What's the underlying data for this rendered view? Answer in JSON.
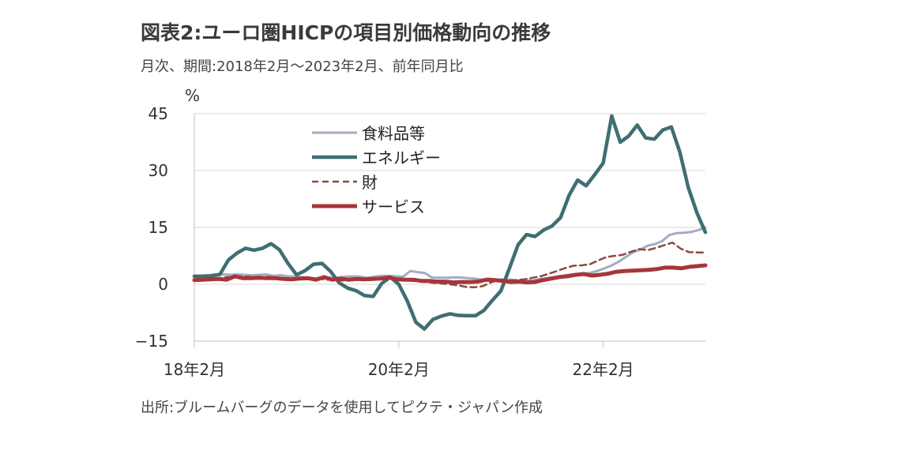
{
  "chart_data": {
    "type": "line",
    "title": "図表2:ユーロ圏HICPの項目別価格動向の推移",
    "subtitle": "月次、期間:2018年2月〜2023年2月、前年同月比",
    "source": "出所:ブルームバーグのデータを使用してピクテ・ジャパン作成",
    "ylabel": "%",
    "ylim": [
      -15,
      45
    ],
    "yticks": [
      "45",
      "30",
      "15",
      "0",
      "−15"
    ],
    "ytick_values": [
      45,
      30,
      15,
      0,
      -15
    ],
    "x_start": "2018-02",
    "x_end": "2023-02",
    "xtick_labels": [
      "18年2月",
      "20年2月",
      "22年2月"
    ],
    "xtick_dates": [
      "2018-02",
      "2020-02",
      "2022-02"
    ],
    "grid": "horizontal",
    "legend_position": "top-left",
    "series": [
      {
        "name": "食料品等",
        "color": "#a2acc4",
        "style": "solid",
        "values": [
          2.2,
          2.3,
          2.4,
          2.6,
          2.6,
          2.5,
          2.6,
          2.5,
          2.4,
          2.5,
          2.6,
          2.2,
          2.4,
          2.1,
          2.0,
          1.9,
          1.6,
          1.6,
          1.9,
          1.7,
          1.8,
          2.0,
          2.1,
          2.0,
          1.7,
          2.0,
          2.2,
          2.2,
          2.1,
          2.0,
          3.5,
          3.2,
          3.0,
          1.8,
          1.7,
          1.7,
          1.8,
          1.8,
          1.6,
          1.5,
          1.2,
          1.5,
          1.2,
          1.3,
          1.2,
          1.0,
          1.2,
          1.0,
          1.4,
          1.6,
          1.9,
          2.2,
          2.5,
          2.7,
          2.7,
          3.0,
          3.5,
          4.2,
          5.0,
          6.0,
          7.3,
          8.5,
          9.2,
          10.2,
          10.6,
          11.4,
          13.0,
          13.5,
          13.6,
          13.8,
          14.3,
          15.0
        ]
      },
      {
        "name": "エネルギー",
        "color": "#3f6e73",
        "style": "solid",
        "values": [
          2.1,
          2.1,
          2.2,
          2.6,
          6.4,
          8.2,
          9.5,
          9.0,
          9.5,
          10.7,
          9.1,
          5.5,
          2.5,
          3.6,
          5.3,
          5.5,
          3.4,
          0.4,
          -1.0,
          -1.7,
          -3.0,
          -3.2,
          0.2,
          1.9,
          0.0,
          -4.4,
          -10.0,
          -11.8,
          -9.3,
          -8.4,
          -7.8,
          -8.2,
          -8.3,
          -8.3,
          -6.9,
          -4.2,
          -1.7,
          4.3,
          10.4,
          13.1,
          12.6,
          14.3,
          15.4,
          17.6,
          23.5,
          27.5,
          26.0,
          28.9,
          32.0,
          44.4,
          37.5,
          39.1,
          42.0,
          38.6,
          38.3,
          40.7,
          41.5,
          34.9,
          25.5,
          18.9,
          13.7
        ]
      },
      {
        "name": "財",
        "color": "#8c4a3e",
        "style": "dashed",
        "values": [
          1.2,
          1.3,
          1.4,
          1.6,
          1.9,
          2.0,
          2.1,
          1.9,
          1.8,
          2.0,
          1.8,
          1.5,
          1.3,
          1.4,
          1.3,
          1.5,
          1.2,
          1.1,
          1.0,
          1.1,
          1.2,
          1.3,
          1.5,
          1.8,
          1.6,
          1.4,
          1.0,
          0.8,
          0.6,
          0.4,
          0.2,
          0.0,
          -0.3,
          -0.7,
          -0.8,
          -0.5,
          0.5,
          1.2,
          1.0,
          1.1,
          1.3,
          1.7,
          2.1,
          2.8,
          3.5,
          4.3,
          4.9,
          5.0,
          5.3,
          6.3,
          7.2,
          7.5,
          7.8,
          8.6,
          9.3,
          9.0,
          9.6,
          10.3,
          11.0,
          9.4,
          8.5,
          8.4,
          8.4
        ]
      },
      {
        "name": "サービス",
        "color": "#a7353a",
        "style": "solid",
        "values": [
          1.1,
          1.2,
          1.3,
          1.4,
          1.2,
          2.1,
          1.6,
          1.6,
          1.7,
          1.6,
          1.6,
          1.4,
          1.3,
          1.5,
          1.6,
          1.2,
          1.9,
          1.2,
          1.5,
          1.2,
          1.4,
          1.3,
          1.4,
          1.5,
          1.8,
          1.3,
          1.2,
          1.2,
          0.9,
          0.9,
          0.7,
          0.7,
          0.5,
          0.6,
          0.6,
          0.7,
          1.2,
          1.1,
          0.9,
          0.6,
          0.7,
          0.5,
          0.6,
          1.1,
          1.5,
          1.9,
          2.1,
          2.5,
          2.7,
          2.3,
          2.5,
          2.8,
          3.3,
          3.5,
          3.6,
          3.7,
          3.8,
          4.0,
          4.4,
          4.4,
          4.2,
          4.6,
          4.8,
          5.0
        ]
      }
    ]
  }
}
